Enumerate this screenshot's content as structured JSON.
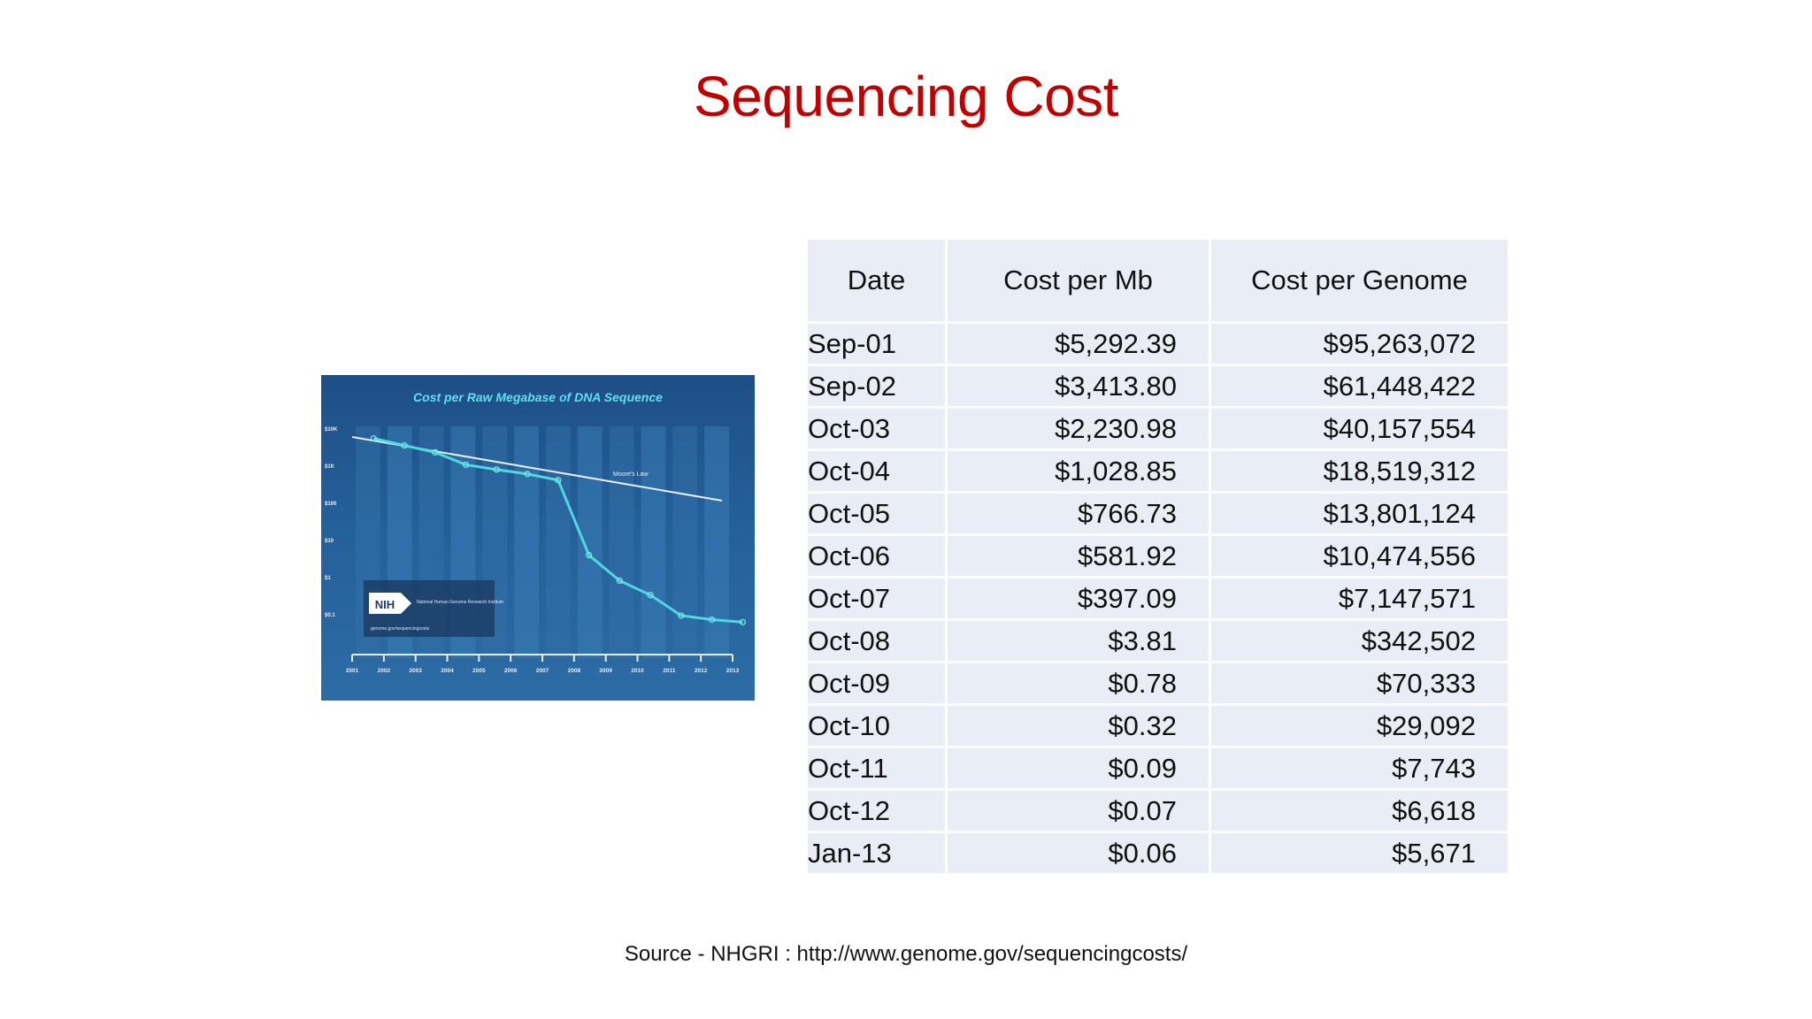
{
  "slide": {
    "title": "Sequencing Cost",
    "source": "Source - NHGRI : http://www.genome.gov/sequencingcosts/"
  },
  "figure": {
    "title": "Cost per Raw Megabase of DNA Sequence",
    "trend_label": "Moore's Law",
    "y_ticks": [
      "$10K",
      "$1K",
      "$100",
      "$10",
      "$1",
      "$0.1"
    ],
    "x_ticks": [
      "2001",
      "2002",
      "2003",
      "2004",
      "2005",
      "2006",
      "2007",
      "2008",
      "2009",
      "2010",
      "2011",
      "2012",
      "2013"
    ],
    "logo_text": "NIH",
    "logo_org": "National Human Genome Research Institute",
    "logo_url": "genome.gov/sequencingcosts"
  },
  "table": {
    "headers": [
      "Date",
      "Cost per Mb",
      "Cost per Genome"
    ],
    "rows": [
      [
        "Sep-01",
        "$5,292.39",
        "$95,263,072"
      ],
      [
        "Sep-02",
        "$3,413.80",
        "$61,448,422"
      ],
      [
        "Oct-03",
        "$2,230.98",
        "$40,157,554"
      ],
      [
        "Oct-04",
        "$1,028.85",
        "$18,519,312"
      ],
      [
        "Oct-05",
        "$766.73",
        "$13,801,124"
      ],
      [
        "Oct-06",
        "$581.92",
        "$10,474,556"
      ],
      [
        "Oct-07",
        "$397.09",
        "$7,147,571"
      ],
      [
        "Oct-08",
        "$3.81",
        "$342,502"
      ],
      [
        "Oct-09",
        "$0.78",
        "$70,333"
      ],
      [
        "Oct-10",
        "$0.32",
        "$29,092"
      ],
      [
        "Oct-11",
        "$0.09",
        "$7,743"
      ],
      [
        "Oct-12",
        "$0.07",
        "$6,618"
      ],
      [
        "Jan-13",
        "$0.06",
        "$5,671"
      ]
    ]
  },
  "colors": {
    "title": "#c00000",
    "table_cell": "#e9eef6",
    "chart_bg": "#245f9a",
    "chart_line": "#4fd8e0"
  }
}
